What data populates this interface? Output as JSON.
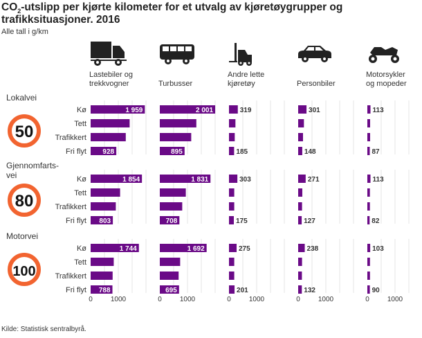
{
  "title_prefix": "CO",
  "title_sub": "2",
  "title_rest": "-utslipp per kjørte kilometer for et utvalg av kjøretøygrupper og trafikksituasjoner. 2016",
  "subtitle": "Alle tall i g/km",
  "footer": "Kilde: Statistisk sentralbyrå.",
  "colors": {
    "bar": "#6a0a87",
    "sign": "#f26430",
    "grid": "#e6e6e6"
  },
  "chart_data": {
    "type": "bar",
    "orientation": "horizontal",
    "unit": "g/km",
    "xlim": [
      0,
      2000
    ],
    "xticks": [
      0,
      1000
    ],
    "grid": true,
    "vehicle_groups": [
      {
        "label": "Lastebiler og trekkvogner",
        "icon": "truck-icon"
      },
      {
        "label": "Turbusser",
        "icon": "bus-icon"
      },
      {
        "label": "Andre lette kjøretøy",
        "icon": "forklift-icon"
      },
      {
        "label": "Personbiler",
        "icon": "car-icon"
      },
      {
        "label": "Motorsykler og mopeder",
        "icon": "motorcycle-icon"
      }
    ],
    "categories": [
      "Kø",
      "Tett",
      "Trafikkert",
      "Fri flyt"
    ],
    "road_types": [
      {
        "label": "Lokalvei",
        "speed": "50",
        "values": [
          [
            1959,
            1410,
            1270,
            928
          ],
          [
            2001,
            1320,
            1135,
            895
          ],
          [
            319,
            233,
            208,
            185
          ],
          [
            301,
            208,
            175,
            148
          ],
          [
            113,
            100,
            100,
            87
          ]
        ],
        "labels": [
          [
            "1 959",
            null,
            null,
            "928"
          ],
          [
            "2 001",
            null,
            null,
            "895"
          ],
          [
            "319",
            null,
            null,
            "185"
          ],
          [
            "301",
            null,
            null,
            "148"
          ],
          [
            "113",
            null,
            null,
            "87"
          ]
        ]
      },
      {
        "label": "Gjennomfarts-vei",
        "speed": "80",
        "values": [
          [
            1854,
            1065,
            910,
            803
          ],
          [
            1831,
            940,
            810,
            708
          ],
          [
            303,
            190,
            190,
            175
          ],
          [
            271,
            150,
            140,
            127
          ],
          [
            113,
            92,
            92,
            82
          ]
        ],
        "labels": [
          [
            "1 854",
            null,
            null,
            "803"
          ],
          [
            "1 831",
            null,
            null,
            "708"
          ],
          [
            "303",
            null,
            null,
            "175"
          ],
          [
            "271",
            null,
            null,
            "127"
          ],
          [
            "113",
            null,
            null,
            "82"
          ]
        ]
      },
      {
        "label": "Motorvei",
        "speed": "100",
        "values": [
          [
            1744,
            835,
            795,
            788
          ],
          [
            1692,
            735,
            680,
            695
          ],
          [
            275,
            190,
            190,
            201
          ],
          [
            238,
            140,
            135,
            132
          ],
          [
            103,
            95,
            95,
            90
          ]
        ],
        "labels": [
          [
            "1 744",
            null,
            null,
            "788"
          ],
          [
            "1 692",
            null,
            null,
            "695"
          ],
          [
            "275",
            null,
            null,
            "201"
          ],
          [
            "238",
            null,
            null,
            "132"
          ],
          [
            "103",
            null,
            null,
            "90"
          ]
        ]
      }
    ]
  }
}
